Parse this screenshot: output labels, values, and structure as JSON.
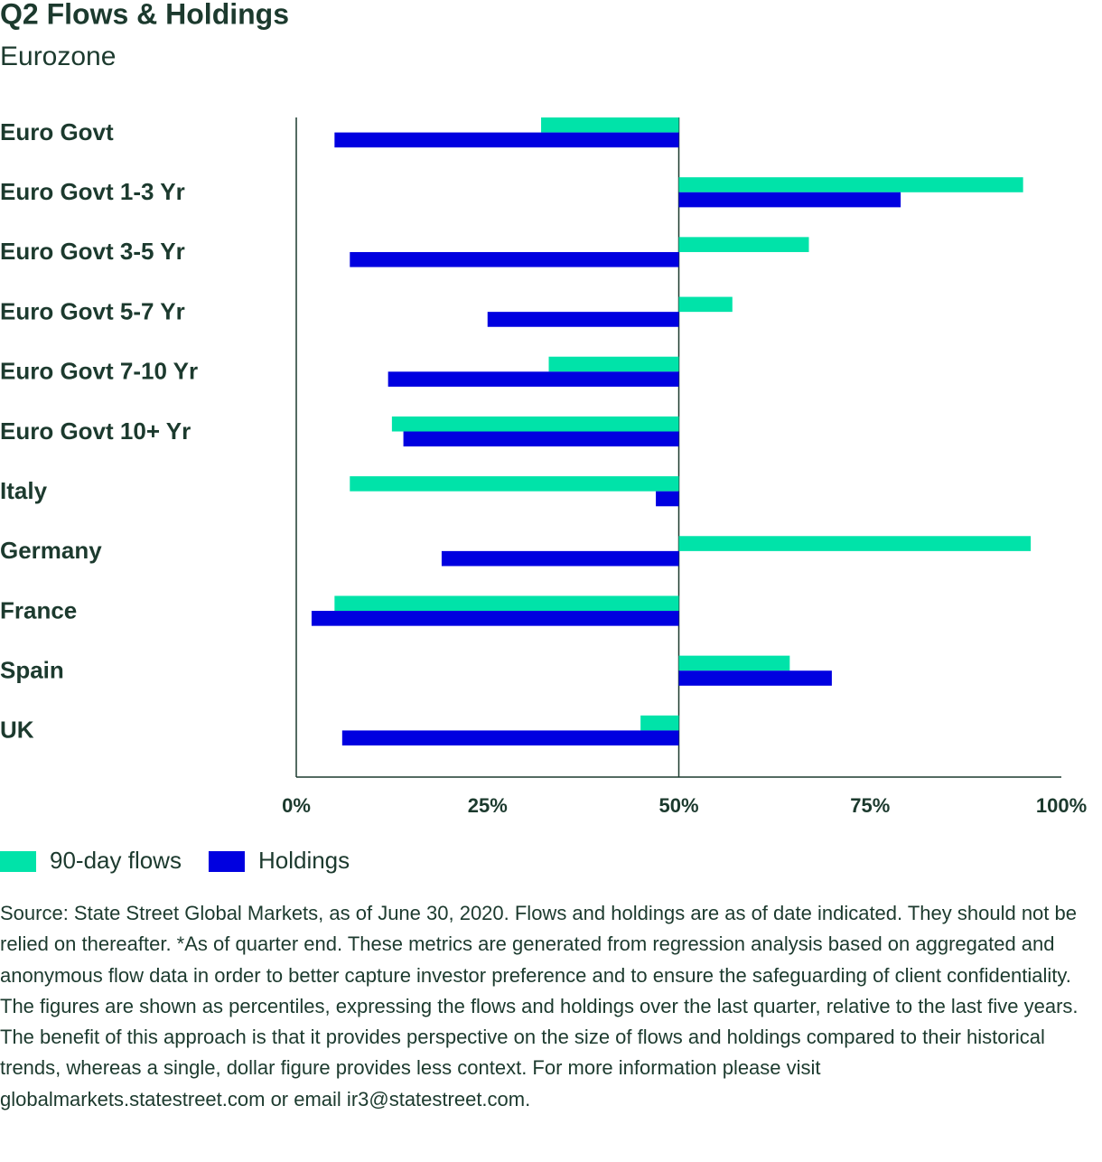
{
  "chart_data": {
    "type": "hbar",
    "title": "Q2 Flows & Holdings",
    "subtitle": "Eurozone",
    "categories": [
      "Euro Govt",
      "Euro Govt 1-3 Yr",
      "Euro Govt 3-5 Yr",
      "Euro Govt 5-7 Yr",
      "Euro Govt 7-10 Yr",
      "Euro Govt 10+ Yr",
      "Italy",
      "Germany",
      "France",
      "Spain",
      "UK"
    ],
    "series": [
      {
        "name": "90-day flows",
        "color": "#00e3a9",
        "values": [
          32,
          95,
          67,
          57,
          33,
          12.5,
          7,
          96,
          5,
          64.5,
          45
        ]
      },
      {
        "name": "Holdings",
        "color": "#0000e0",
        "values": [
          5,
          79,
          7,
          25,
          12,
          14,
          47,
          19,
          2,
          70,
          6
        ]
      }
    ],
    "baseline": 50,
    "xlim": [
      0,
      100
    ],
    "xticks": [
      {
        "value": 0,
        "label": "0%"
      },
      {
        "value": 25,
        "label": "25%"
      },
      {
        "value": 50,
        "label": "50%"
      },
      {
        "value": 75,
        "label": "75%"
      },
      {
        "value": 100,
        "label": "100%"
      }
    ],
    "legend": "bottom-left",
    "note": "Source: State Street Global Markets, as of June 30, 2020. Flows and holdings are as of date indicated. They should not be relied on thereafter. *As of quarter end. These metrics are generated from regression analysis based on aggregated and anonymous flow data in order to better capture investor preference and to ensure the safeguarding of client confidentiality. The figures are shown as percentiles, expressing the flows and holdings over the last quarter, relative to the last five years. The benefit of this approach is that it provides perspective on the size of flows and holdings compared to their historical trends, whereas a single, dollar figure provides less context. For more information please visit globalmarkets.statestreet.com or email ir3@statestreet.com."
  }
}
